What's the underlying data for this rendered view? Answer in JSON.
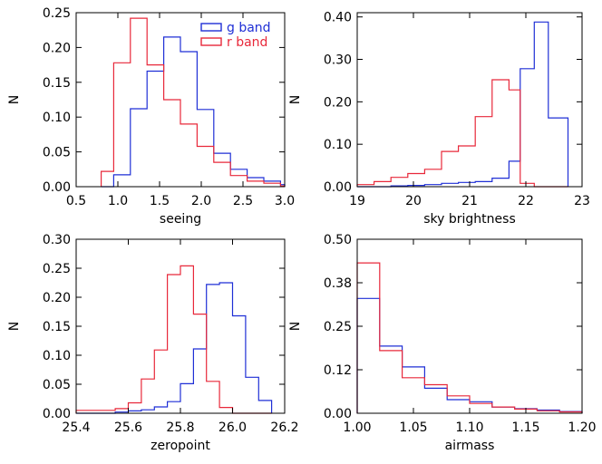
{
  "colors": {
    "g": "#1f2fd6",
    "r": "#e8283a"
  },
  "legend": {
    "g_label": "g band",
    "r_label": "r band"
  },
  "chart_data": [
    {
      "type": "histogram",
      "xlabel": "seeing",
      "ylabel": "N",
      "xlim": [
        0.5,
        3.0
      ],
      "ylim": [
        0.0,
        0.25
      ],
      "xticks": [
        0.5,
        1.0,
        1.5,
        2.0,
        2.5,
        3.0
      ],
      "xtick_labels": [
        "0.5",
        "1.0",
        "1.5",
        "2.0",
        "2.5",
        "3.0"
      ],
      "yticks": [
        0.0,
        0.05,
        0.1,
        0.15,
        0.2,
        0.25
      ],
      "ytick_labels": [
        "0.00",
        "0.05",
        "0.10",
        "0.15",
        "0.20",
        "0.25"
      ],
      "legend": true,
      "series": [
        {
          "name": "g band",
          "edges": [
            0.8,
            0.95,
            1.15,
            1.35,
            1.55,
            1.75,
            1.95,
            2.15,
            2.35,
            2.55,
            2.75,
            2.95,
            3.0
          ],
          "values": [
            0.0,
            0.017,
            0.112,
            0.166,
            0.215,
            0.194,
            0.111,
            0.048,
            0.025,
            0.013,
            0.008,
            0.003
          ]
        },
        {
          "name": "r band",
          "edges": [
            0.8,
            0.95,
            1.15,
            1.35,
            1.55,
            1.75,
            1.95,
            2.15,
            2.35,
            2.55,
            2.75,
            2.95,
            3.0
          ],
          "values": [
            0.022,
            0.178,
            0.242,
            0.175,
            0.125,
            0.09,
            0.058,
            0.035,
            0.016,
            0.008,
            0.005,
            0.001
          ]
        }
      ]
    },
    {
      "type": "histogram",
      "xlabel": "sky brightness",
      "ylabel": "N",
      "xlim": [
        19,
        23
      ],
      "ylim": [
        0.0,
        0.41
      ],
      "xticks": [
        19,
        20,
        21,
        22,
        23
      ],
      "xtick_labels": [
        "19",
        "20",
        "21",
        "22",
        "23"
      ],
      "yticks": [
        0.0,
        0.1,
        0.2,
        0.3,
        0.4
      ],
      "ytick_labels": [
        "0.00",
        "0.10",
        "0.20",
        "0.30",
        "0.40"
      ],
      "legend": false,
      "series": [
        {
          "name": "g band",
          "edges": [
            19.0,
            19.3,
            19.6,
            19.9,
            20.2,
            20.5,
            20.8,
            21.1,
            21.4,
            21.7,
            21.9,
            22.15,
            22.4,
            22.75
          ],
          "values": [
            0.0,
            0.0,
            0.002,
            0.003,
            0.005,
            0.008,
            0.01,
            0.012,
            0.02,
            0.06,
            0.278,
            0.388,
            0.162,
            0.0
          ]
        },
        {
          "name": "r band",
          "edges": [
            19.0,
            19.3,
            19.6,
            19.9,
            20.2,
            20.5,
            20.8,
            21.1,
            21.4,
            21.7,
            21.9,
            22.15,
            22.4,
            22.75
          ],
          "values": [
            0.005,
            0.012,
            0.022,
            0.031,
            0.041,
            0.083,
            0.096,
            0.165,
            0.252,
            0.228,
            0.008,
            0.0,
            0.0,
            0.0
          ]
        }
      ]
    },
    {
      "type": "histogram",
      "xlabel": "zeropoint",
      "ylabel": "N",
      "xlim": [
        25.4,
        26.2
      ],
      "ylim": [
        0.0,
        0.3
      ],
      "xticks": [
        25.4,
        25.6,
        25.8,
        26.0,
        26.2
      ],
      "xtick_labels": [
        "25.4",
        "25.6",
        "25.8",
        "26.0",
        "26.2"
      ],
      "yticks": [
        0.0,
        0.05,
        0.1,
        0.15,
        0.2,
        0.25,
        0.3
      ],
      "ytick_labels": [
        "0.00",
        "0.05",
        "0.10",
        "0.15",
        "0.20",
        "0.25",
        "0.30"
      ],
      "legend": false,
      "series": [
        {
          "name": "g band",
          "edges": [
            25.4,
            25.55,
            25.6,
            25.65,
            25.7,
            25.75,
            25.8,
            25.85,
            25.9,
            25.95,
            26.0,
            26.05,
            26.1,
            26.15
          ],
          "values": [
            0.0,
            0.002,
            0.004,
            0.006,
            0.011,
            0.02,
            0.051,
            0.111,
            0.222,
            0.225,
            0.168,
            0.062,
            0.022
          ]
        },
        {
          "name": "r band",
          "edges": [
            25.4,
            25.55,
            25.6,
            25.65,
            25.7,
            25.75,
            25.8,
            25.85,
            25.9,
            25.95,
            26.0,
            26.05,
            26.1,
            26.15
          ],
          "values": [
            0.005,
            0.008,
            0.018,
            0.059,
            0.109,
            0.239,
            0.254,
            0.171,
            0.055,
            0.01,
            0.0,
            0.0,
            0.0
          ]
        }
      ]
    },
    {
      "type": "histogram",
      "xlabel": "airmass",
      "ylabel": "N",
      "xlim": [
        1.0,
        1.2
      ],
      "ylim": [
        0.0,
        0.5
      ],
      "xticks": [
        1.0,
        1.05,
        1.1,
        1.15,
        1.2
      ],
      "xtick_labels": [
        "1.00",
        "1.05",
        "1.10",
        "1.15",
        "1.20"
      ],
      "yticks": [
        0.0,
        0.125,
        0.25,
        0.375,
        0.5
      ],
      "ytick_labels": [
        "0.00",
        "0.12",
        "0.25",
        "0.38",
        "0.50"
      ],
      "legend": false,
      "series": [
        {
          "name": "g band",
          "edges": [
            1.0,
            1.02,
            1.04,
            1.06,
            1.08,
            1.1,
            1.12,
            1.14,
            1.16,
            1.18,
            1.2
          ],
          "values": [
            0.33,
            0.193,
            0.133,
            0.072,
            0.039,
            0.033,
            0.018,
            0.013,
            0.009,
            0.005
          ]
        },
        {
          "name": "r band",
          "edges": [
            1.0,
            1.02,
            1.04,
            1.06,
            1.08,
            1.1,
            1.12,
            1.14,
            1.16,
            1.18,
            1.2
          ],
          "values": [
            0.432,
            0.18,
            0.102,
            0.082,
            0.05,
            0.028,
            0.018,
            0.012,
            0.007,
            0.004
          ]
        }
      ]
    }
  ]
}
